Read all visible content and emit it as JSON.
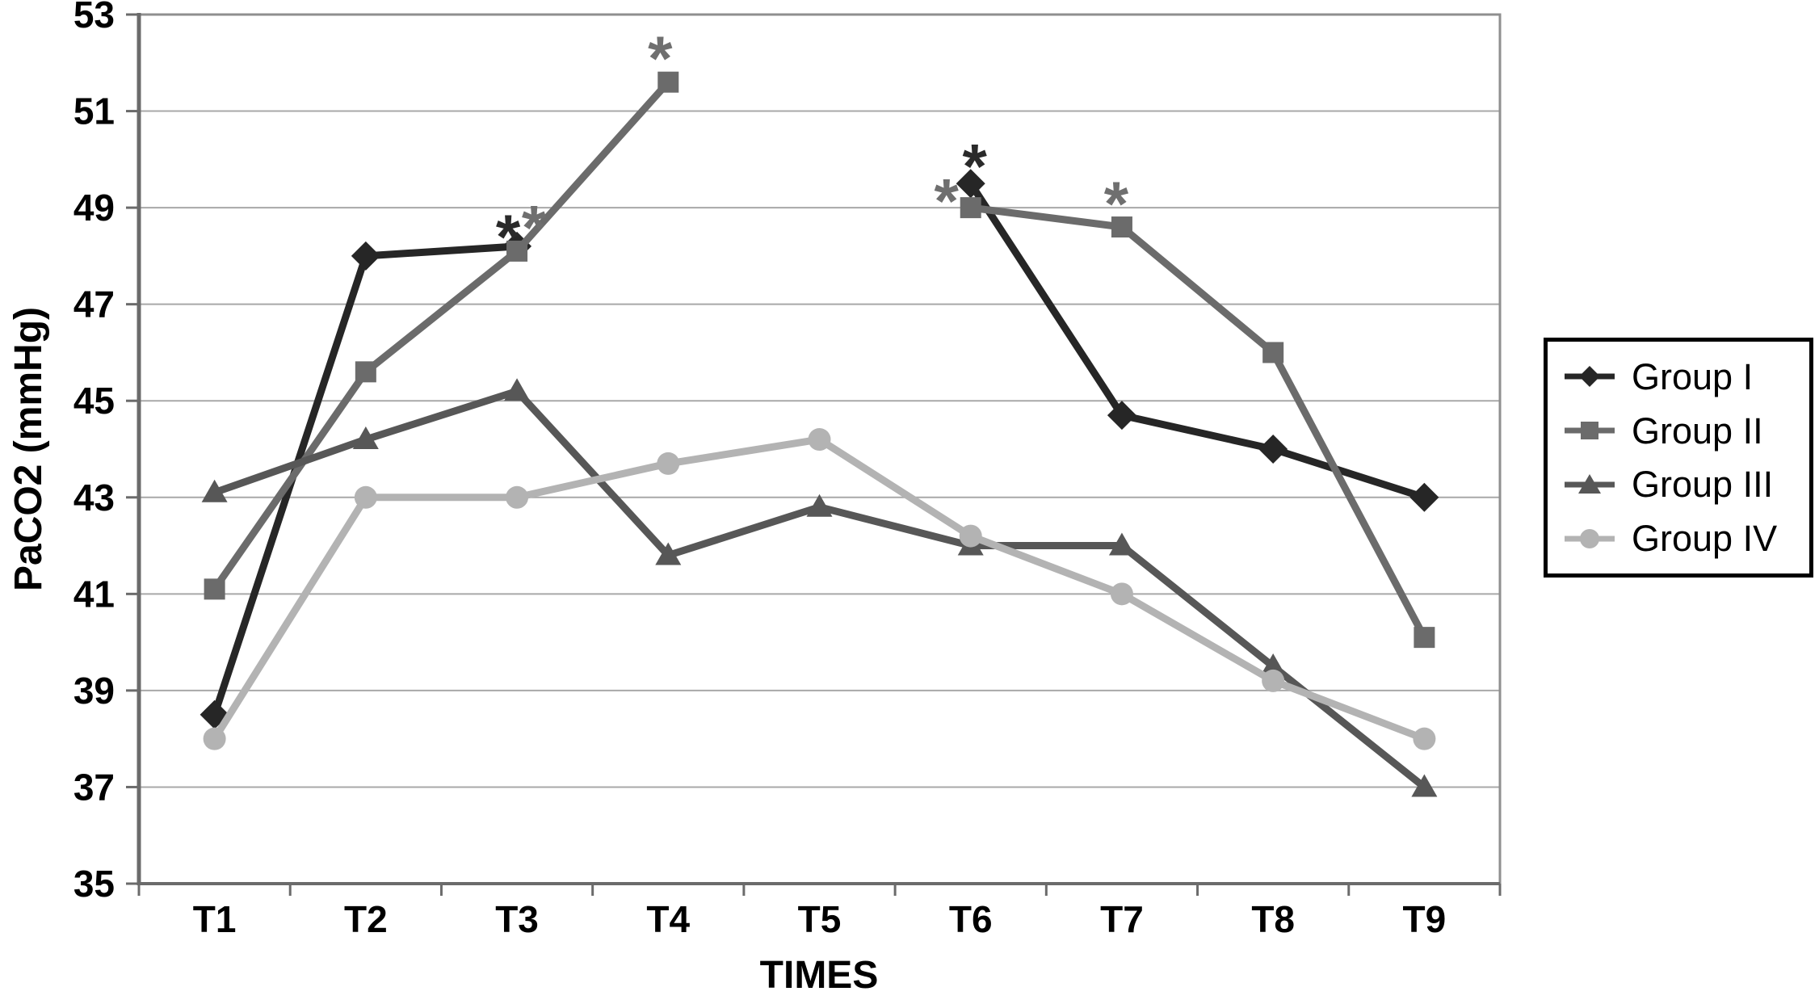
{
  "chart_data": {
    "type": "line",
    "title": "",
    "xlabel": "TIMES",
    "ylabel": "PaCO2 (mmHg)",
    "categories": [
      "T1",
      "T2",
      "T3",
      "T4",
      "T5",
      "T6",
      "T7",
      "T8",
      "T9"
    ],
    "ylim": [
      35,
      53
    ],
    "yticks": [
      35,
      37,
      39,
      41,
      43,
      45,
      47,
      49,
      51,
      53
    ],
    "grid": "horizontal-on",
    "legend_position": "right-outside",
    "series": [
      {
        "name": "Group I",
        "marker": "diamond",
        "color": "#262626",
        "values": [
          38.5,
          48.0,
          48.2,
          null,
          null,
          49.5,
          44.7,
          44.0,
          43.0
        ]
      },
      {
        "name": "Group II",
        "marker": "square",
        "color": "#6b6b6b",
        "values": [
          41.1,
          45.6,
          48.1,
          51.6,
          null,
          49.0,
          48.6,
          46.0,
          40.1
        ]
      },
      {
        "name": "Group III",
        "marker": "triangle",
        "color": "#575757",
        "values": [
          43.1,
          44.2,
          45.2,
          41.8,
          42.8,
          42.0,
          42.0,
          39.5,
          37.0
        ]
      },
      {
        "name": "Group IV",
        "marker": "circle",
        "color": "#b3b3b3",
        "values": [
          38.0,
          43.0,
          43.0,
          43.7,
          44.2,
          42.2,
          41.0,
          39.2,
          38.0
        ]
      }
    ],
    "annotations": [
      {
        "text": "*",
        "x_index": 2,
        "dx": -11,
        "value": 48.58,
        "color": "#2a2a2a"
      },
      {
        "text": "*",
        "x_index": 2,
        "dx": 21,
        "value": 48.78,
        "color": "#6f6f6f"
      },
      {
        "text": "*",
        "x_index": 3,
        "dx": -10,
        "value": 52.28,
        "color": "#6f6f6f"
      },
      {
        "text": "*",
        "x_index": 5,
        "dx": 5,
        "value": 50.05,
        "color": "#2a2a2a"
      },
      {
        "text": "*",
        "x_index": 5,
        "dx": -30,
        "value": 49.33,
        "color": "#6f6f6f"
      },
      {
        "text": "*",
        "x_index": 6,
        "dx": -7,
        "value": 49.27,
        "color": "#6f6f6f"
      }
    ],
    "colors": {
      "gridline": "#a8a8a8",
      "plot_border": "#8f8f8f",
      "axis": "#6b6b6b",
      "text": "#000000",
      "background": "#ffffff"
    }
  },
  "legend": {
    "items": [
      {
        "label": "Group I"
      },
      {
        "label": "Group II"
      },
      {
        "label": "Group III"
      },
      {
        "label": "Group IV"
      }
    ]
  }
}
